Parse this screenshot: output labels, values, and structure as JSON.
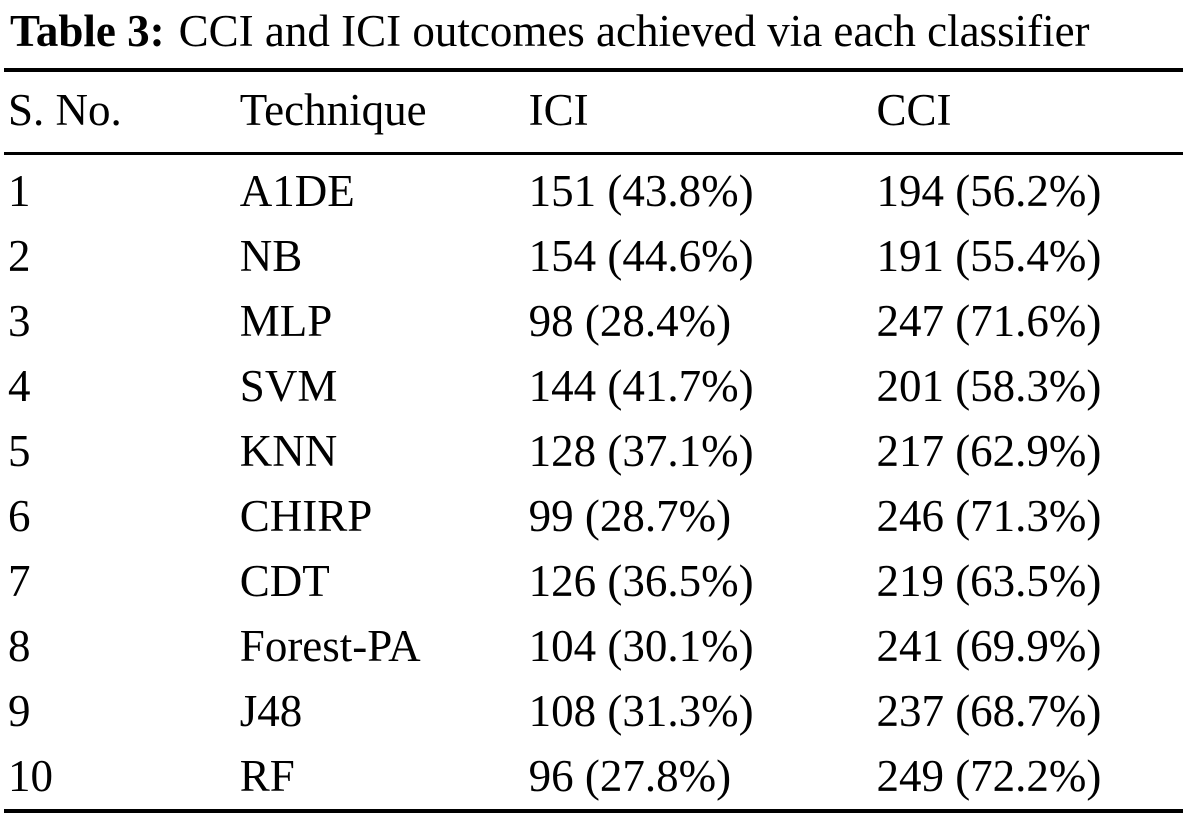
{
  "caption": {
    "label": "Table 3:",
    "text": "CCI and ICI outcomes achieved via each classifier"
  },
  "table": {
    "columns": [
      "S. No.",
      "Technique",
      "ICI",
      "CCI"
    ],
    "rows": [
      [
        "1",
        "A1DE",
        "151 (43.8%)",
        "194 (56.2%)"
      ],
      [
        "2",
        "NB",
        "154 (44.6%)",
        "191 (55.4%)"
      ],
      [
        "3",
        "MLP",
        "98 (28.4%)",
        "247 (71.6%)"
      ],
      [
        "4",
        "SVM",
        "144 (41.7%)",
        "201 (58.3%)"
      ],
      [
        "5",
        "KNN",
        "128 (37.1%)",
        "217 (62.9%)"
      ],
      [
        "6",
        "CHIRP",
        "99 (28.7%)",
        "246 (71.3%)"
      ],
      [
        "7",
        "CDT",
        "126 (36.5%)",
        "219 (63.5%)"
      ],
      [
        "8",
        "Forest-PA",
        "104 (30.1%)",
        "241 (69.9%)"
      ],
      [
        "9",
        "J48",
        "108 (31.3%)",
        "237 (68.7%)"
      ],
      [
        "10",
        "RF",
        "96 (27.8%)",
        "249 (72.2%)"
      ]
    ]
  },
  "chart_data": {
    "type": "table",
    "title": "Table 3: CCI and ICI outcomes achieved via each classifier",
    "columns": [
      "S. No.",
      "Technique",
      "ICI",
      "CCI"
    ],
    "rows": [
      [
        "1",
        "A1DE",
        "151 (43.8%)",
        "194 (56.2%)"
      ],
      [
        "2",
        "NB",
        "154 (44.6%)",
        "191 (55.4%)"
      ],
      [
        "3",
        "MLP",
        "98 (28.4%)",
        "247 (71.6%)"
      ],
      [
        "4",
        "SVM",
        "144 (41.7%)",
        "201 (58.3%)"
      ],
      [
        "5",
        "KNN",
        "128 (37.1%)",
        "217 (62.9%)"
      ],
      [
        "6",
        "CHIRP",
        "99 (28.7%)",
        "246 (71.3%)"
      ],
      [
        "7",
        "CDT",
        "126 (36.5%)",
        "219 (63.5%)"
      ],
      [
        "8",
        "Forest-PA",
        "104 (30.1%)",
        "241 (69.9%)"
      ],
      [
        "9",
        "J48",
        "108 (31.3%)",
        "237 (68.7%)"
      ],
      [
        "10",
        "RF",
        "96 (27.8%)",
        "249 (72.2%)"
      ]
    ]
  }
}
